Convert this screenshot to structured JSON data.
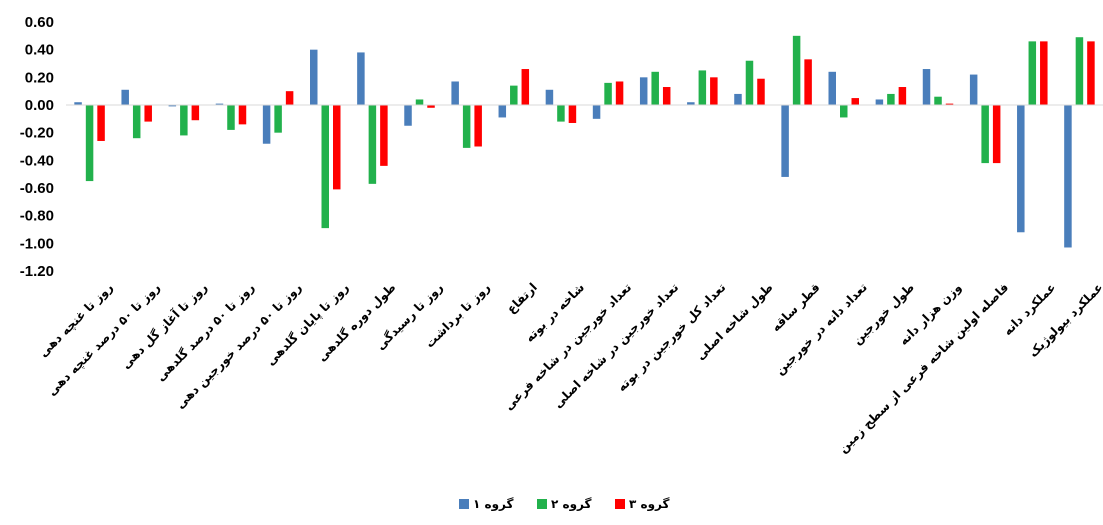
{
  "chart_data": {
    "type": "bar",
    "title": "",
    "xlabel": "",
    "ylabel": "",
    "ylim": [
      -1.2,
      0.6
    ],
    "yticks": [
      "0.60",
      "0.40",
      "0.20",
      "0.00",
      "-0.20",
      "-0.40",
      "-0.60",
      "-0.80",
      "-1.00",
      "-1.20"
    ],
    "grid": false,
    "legend": "bottom",
    "categories": [
      "روز تا غنچه دهی",
      "روز تا ۵۰ درصد غنچه دهی",
      "روز تا آغاز گل دهی",
      "روز تا ۵۰ درصد گلدهی",
      "روز تا ۵۰ درصد خورجین دهی",
      "روز تا پایان گلدهی",
      "طول دوره گلدهی",
      "روز تا رسیدگی",
      "روز تا برداشت",
      "ارتفاع",
      "شاخه در بوته",
      "تعداد خورجین در شاخه فرعی",
      "تعداد خورجین در شاخه اصلی",
      "تعداد کل خورجین در بوته",
      "طول شاخه اصلی",
      "قطر ساقه",
      "تعداد دانه در خورجین",
      "طول خورجین",
      "وزن هزار دانه",
      "فاصله اولین شاخه فرعی از سطح زمین",
      "عملکرد دانه",
      "عملکرد بیولوژیک"
    ],
    "series": [
      {
        "name": "گروه ۱",
        "color": "#4a7ebb",
        "values": [
          0.02,
          0.11,
          -0.01,
          0.01,
          -0.28,
          0.4,
          0.38,
          -0.15,
          0.17,
          -0.09,
          0.11,
          -0.1,
          0.2,
          0.02,
          0.08,
          -0.52,
          0.24,
          0.04,
          0.26,
          0.22,
          -0.92,
          -1.03
        ]
      },
      {
        "name": "گروه ۲",
        "color": "#22b14c",
        "values": [
          -0.55,
          -0.24,
          -0.22,
          -0.18,
          -0.2,
          -0.89,
          -0.57,
          0.04,
          -0.31,
          0.14,
          -0.12,
          0.16,
          0.24,
          0.25,
          0.32,
          0.5,
          -0.09,
          0.08,
          0.06,
          -0.42,
          0.46,
          0.49
        ]
      },
      {
        "name": "گروه ۳",
        "color": "#ff0000",
        "values": [
          -0.26,
          -0.12,
          -0.11,
          -0.14,
          0.1,
          -0.61,
          -0.44,
          -0.02,
          -0.3,
          0.26,
          -0.13,
          0.17,
          0.13,
          0.2,
          0.19,
          0.33,
          0.05,
          0.13,
          0.01,
          -0.42,
          0.46,
          0.46
        ]
      }
    ]
  }
}
